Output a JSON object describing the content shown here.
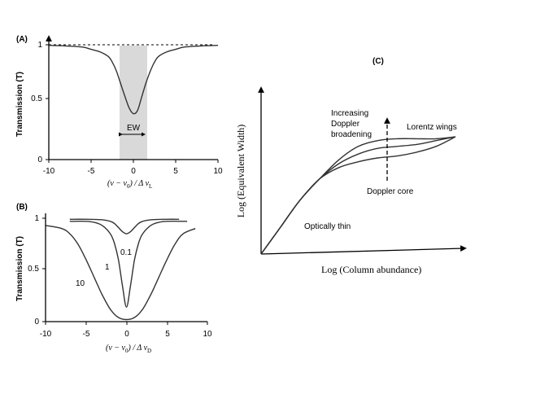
{
  "chart_data": [
    {
      "panel": "(A)",
      "type": "line",
      "ylabel": "Transmission (T)",
      "xlabel": "(ν − ν0) / Δν_L",
      "xlim": [
        -10,
        10
      ],
      "ylim": [
        0,
        1
      ],
      "x_ticks": [
        "-10",
        "-5",
        "0",
        "5",
        "10"
      ],
      "y_ticks": [
        "0",
        "0.5",
        "1"
      ],
      "continuum_level": 1,
      "series": [
        {
          "x": [
            -10,
            -8,
            -6,
            -5,
            -4,
            -3,
            -2.5,
            -2,
            -1.5,
            -1,
            -0.5,
            0,
            0.5,
            1,
            1.5,
            2,
            2.5,
            3,
            4,
            5,
            6,
            8,
            10
          ],
          "y": [
            0.995,
            0.99,
            0.98,
            0.96,
            0.94,
            0.9,
            0.85,
            0.77,
            0.66,
            0.55,
            0.45,
            0.4,
            0.43,
            0.55,
            0.67,
            0.77,
            0.85,
            0.9,
            0.94,
            0.96,
            0.98,
            0.99,
            0.995
          ]
        }
      ],
      "shaded_band": [
        -1.5,
        1.5
      ],
      "annotation": "EW"
    },
    {
      "panel": "(B)",
      "type": "line",
      "ylabel": "Transmission (T)",
      "xlabel": "(ν − ν0) / Δν_D",
      "xlim": [
        -10,
        10
      ],
      "ylim": [
        0,
        1
      ],
      "x_ticks": [
        "-10",
        "-5",
        "0",
        "5",
        "10"
      ],
      "y_ticks": [
        "0",
        "0.5",
        "1"
      ],
      "series": [
        {
          "name": "0.1",
          "x": [
            -7,
            -5,
            -3,
            -2,
            -1.5,
            -1,
            -0.5,
            0,
            0.5,
            1,
            1.5,
            2,
            3,
            5,
            6.5
          ],
          "y": [
            0.99,
            0.99,
            0.985,
            0.97,
            0.95,
            0.91,
            0.87,
            0.85,
            0.87,
            0.91,
            0.95,
            0.97,
            0.985,
            0.99,
            0.99
          ]
        },
        {
          "name": "1",
          "x": [
            -7,
            -5,
            -4,
            -3,
            -2,
            -1.5,
            -1,
            -0.5,
            0,
            0.5,
            1,
            1.5,
            2,
            3,
            4,
            5,
            7.5
          ],
          "y": [
            0.97,
            0.97,
            0.96,
            0.93,
            0.85,
            0.76,
            0.6,
            0.35,
            0.14,
            0.35,
            0.6,
            0.76,
            0.85,
            0.93,
            0.96,
            0.97,
            0.97
          ]
        },
        {
          "name": "10",
          "x": [
            -10,
            -8,
            -7,
            -6,
            -5,
            -4,
            -3,
            -2,
            -1,
            0,
            1,
            2,
            3,
            4,
            5,
            6,
            7,
            8.5
          ],
          "y": [
            0.93,
            0.9,
            0.85,
            0.75,
            0.6,
            0.43,
            0.26,
            0.12,
            0.04,
            0.02,
            0.04,
            0.12,
            0.26,
            0.43,
            0.6,
            0.75,
            0.85,
            0.9
          ]
        }
      ],
      "series_labels": [
        "0.1",
        "1",
        "10"
      ]
    },
    {
      "panel": "(C)",
      "type": "line",
      "ylabel": "Log (Equivalent Width)",
      "xlabel": "Log (Column abundance)",
      "xlim": [
        0,
        10
      ],
      "ylim": [
        0,
        10
      ],
      "series": [
        {
          "x": [
            0,
            1,
            2,
            3,
            4,
            5,
            6,
            7,
            8,
            9,
            10
          ],
          "y": [
            0,
            1.4,
            2.8,
            3.9,
            4.5,
            4.8,
            5.0,
            5.1,
            5.3,
            5.6,
            6.1
          ]
        },
        {
          "x": [
            0,
            1,
            2,
            3,
            4,
            5,
            6,
            7,
            8,
            9,
            10
          ],
          "y": [
            0,
            1.4,
            2.8,
            3.9,
            4.7,
            5.2,
            5.5,
            5.6,
            5.7,
            5.9,
            6.1
          ]
        },
        {
          "x": [
            0,
            1,
            2,
            3,
            4,
            5,
            6,
            7,
            8,
            9,
            10
          ],
          "y": [
            0,
            1.4,
            2.8,
            3.9,
            4.9,
            5.6,
            5.9,
            6.0,
            6.0,
            6.0,
            6.1
          ]
        }
      ],
      "annotations": [
        "Increasing",
        "Doppler",
        "broadening",
        "Lorentz wings",
        "Doppler core",
        "Optically thin"
      ]
    }
  ],
  "labels": {
    "panel_a": "(A)",
    "panel_b": "(B)",
    "panel_c": "(C)",
    "t_axis": "Transmission (T)",
    "tick_1": "1",
    "tick_05": "0.5",
    "tick_0": "0",
    "ew": "EW",
    "x_m10": "-10",
    "x_m5": "-5",
    "x_0": "0",
    "x_5": "5",
    "x_10": "10",
    "xlabel_lhs_a": "(ν − ν",
    "xlabel_sub0": "0",
    "xlabel_mid": ") / Δ ν",
    "xlabel_sub_l": "L",
    "xlabel_sub_d": "D",
    "c_ylabel": "Log (Equivalent Width)",
    "c_xlabel": "Log (Column abundance)",
    "c_inc": "Increasing",
    "c_dop": "Doppler",
    "c_broad": "broadening",
    "c_lor": "Lorentz wings",
    "c_core": "Doppler core",
    "c_thin": "Optically thin",
    "b_lab01": "0.1",
    "b_lab1": "1",
    "b_lab10": "10"
  }
}
